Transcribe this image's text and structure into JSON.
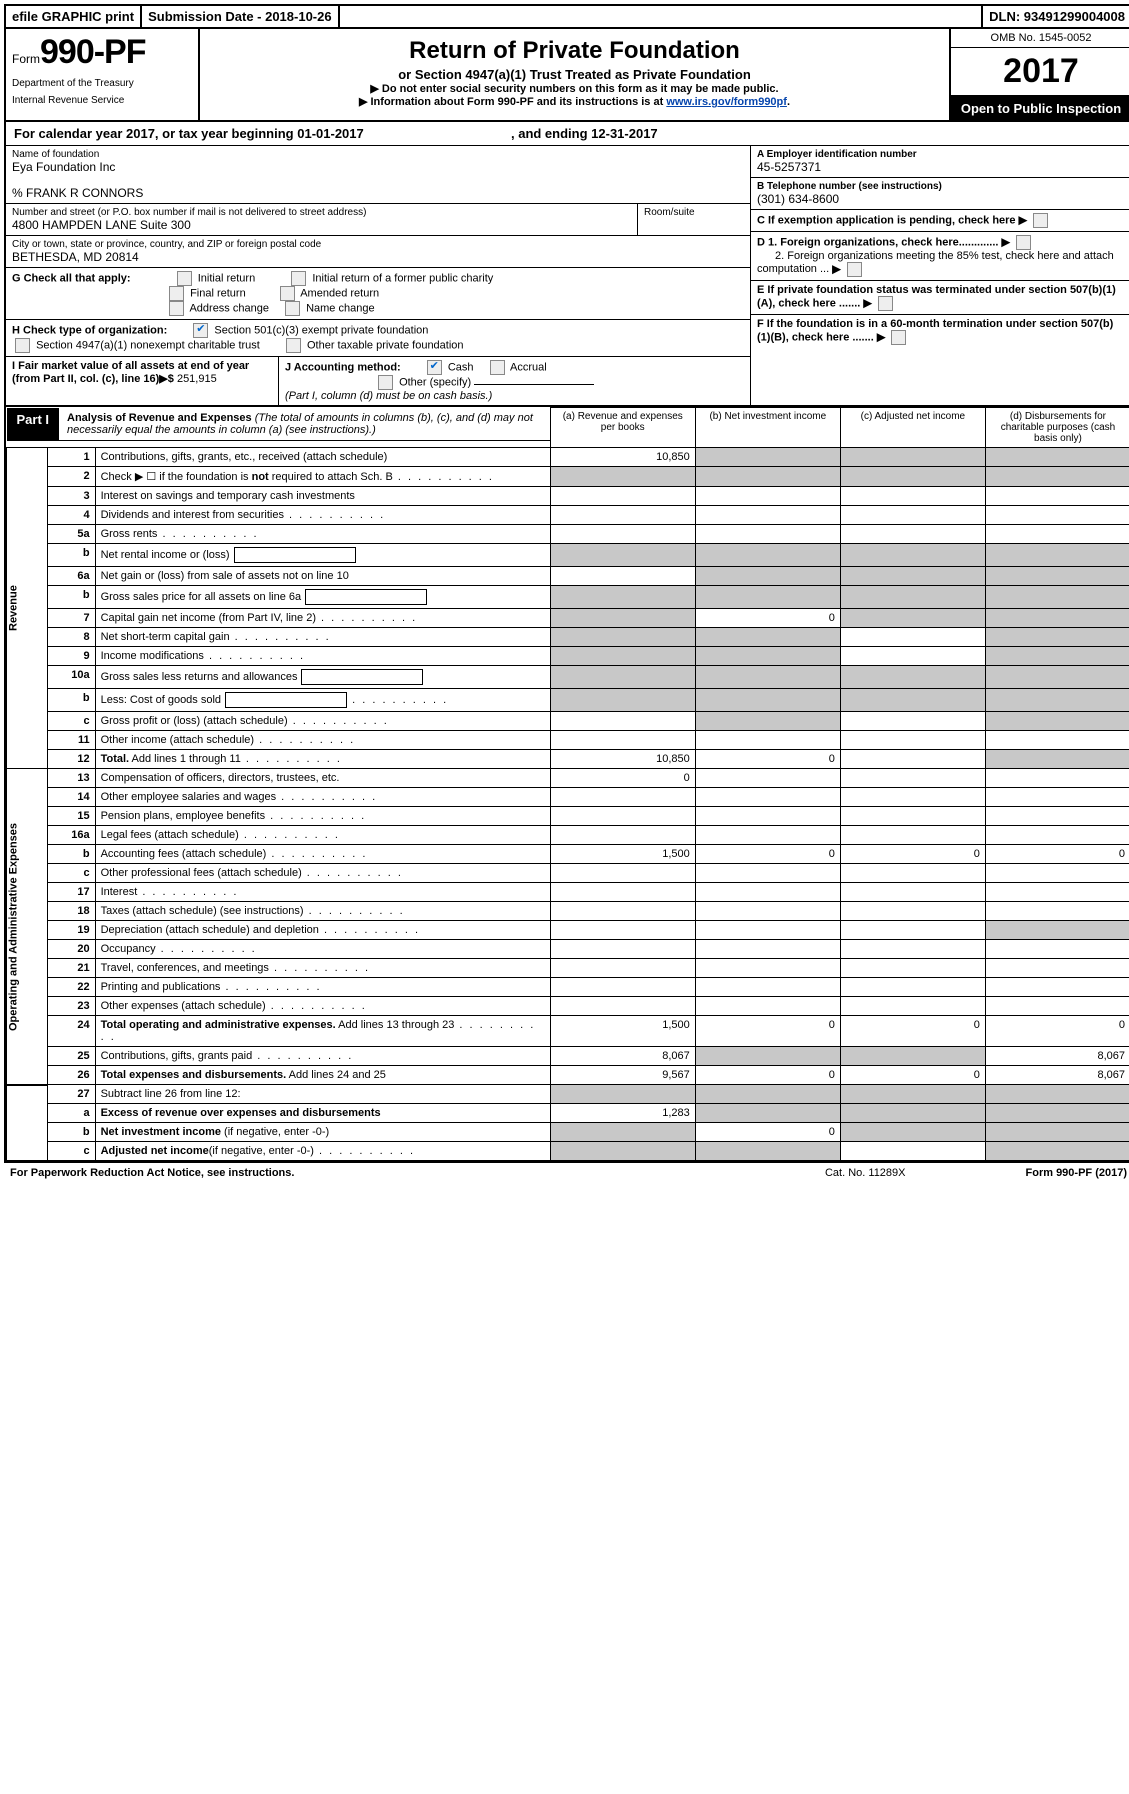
{
  "top": {
    "efile": "efile GRAPHIC print",
    "submission": "Submission Date - 2018-10-26",
    "dln": "DLN: 93491299004008"
  },
  "header": {
    "form_prefix": "Form",
    "form_number": "990-PF",
    "dept1": "Department of the Treasury",
    "dept2": "Internal Revenue Service",
    "title": "Return of Private Foundation",
    "subtitle": "or Section 4947(a)(1) Trust Treated as Private Foundation",
    "note1": "▶ Do not enter social security numbers on this form as it may be made public.",
    "note2_pre": "▶ Information about Form 990-PF and its instructions is at ",
    "note2_link": "www.irs.gov/form990pf",
    "omb": "OMB No. 1545-0052",
    "year": "2017",
    "otp": "Open to Public Inspection"
  },
  "cal": {
    "text_pre": "For calendar year 2017, or tax year beginning ",
    "begin": "01-01-2017",
    "mid": " , and ending ",
    "end": "12-31-2017"
  },
  "entity": {
    "name_lbl": "Name of foundation",
    "name": "Eya Foundation Inc",
    "care_of": "% FRANK R CONNORS",
    "addr_lbl": "Number and street (or P.O. box number if mail is not delivered to street address)",
    "addr": "4800 HAMPDEN LANE Suite 300",
    "room_lbl": "Room/suite",
    "city_lbl": "City or town, state or province, country, and ZIP or foreign postal code",
    "city": "BETHESDA, MD  20814",
    "ein_lbl": "A Employer identification number",
    "ein": "45-5257371",
    "tel_lbl": "B Telephone number (see instructions)",
    "tel": "(301) 634-8600",
    "c_lbl": "C If exemption application is pending, check here",
    "d1": "D 1. Foreign organizations, check here.............",
    "d2": "2. Foreign organizations meeting the 85% test, check here and attach computation ...",
    "e_lbl": "E  If private foundation status was terminated under section 507(b)(1)(A), check here .......",
    "f_lbl": "F  If the foundation is in a 60-month termination under section 507(b)(1)(B), check here ......."
  },
  "g": {
    "lbl": "G Check all that apply:",
    "opts": [
      "Initial return",
      "Initial return of a former public charity",
      "Final return",
      "Amended return",
      "Address change",
      "Name change"
    ]
  },
  "h": {
    "lbl": "H Check type of organization:",
    "o1": "Section 501(c)(3) exempt private foundation",
    "o2": "Section 4947(a)(1) nonexempt charitable trust",
    "o3": "Other taxable private foundation"
  },
  "i": {
    "lbl": "I Fair market value of all assets at end of year (from Part II, col. (c), line 16)▶$",
    "val": "  251,915"
  },
  "j": {
    "lbl": "J Accounting method:",
    "cash": "Cash",
    "accrual": "Accrual",
    "other": "Other (specify)",
    "note": "(Part I, column (d) must be on cash basis.)"
  },
  "part1": {
    "label": "Part I",
    "title": "Analysis of Revenue and Expenses",
    "title_note": "(The total of amounts in columns (b), (c), and (d) may not necessarily equal the amounts in column (a) (see instructions).)",
    "col_a": "(a)   Revenue and expenses per books",
    "col_b": "(b)   Net investment income",
    "col_c": "(c)  Adjusted net income",
    "col_d": "(d)  Disbursements for charitable purposes (cash basis only)"
  },
  "sections": {
    "revenue": "Revenue",
    "opex": "Operating and Administrative Expenses"
  },
  "rows": [
    {
      "n": "1",
      "d": "Contributions, gifts, grants, etc., received (attach schedule)",
      "a": "10,850",
      "shade": [
        "b",
        "c",
        "d"
      ]
    },
    {
      "n": "2",
      "d": "Check ▶ ☐ if the foundation is <b>not</b> required to attach Sch. B",
      "dots": true,
      "shade": [
        "a",
        "b",
        "c",
        "d"
      ]
    },
    {
      "n": "3",
      "d": "Interest on savings and temporary cash investments"
    },
    {
      "n": "4",
      "d": "Dividends and interest from securities",
      "dots": true
    },
    {
      "n": "5a",
      "d": "Gross rents",
      "dots": true
    },
    {
      "n": "b",
      "d": "Net rental income or (loss)",
      "box": true,
      "shade": [
        "a",
        "b",
        "c",
        "d"
      ]
    },
    {
      "n": "6a",
      "d": "Net gain or (loss) from sale of assets not on line 10",
      "shade": [
        "b",
        "c",
        "d"
      ]
    },
    {
      "n": "b",
      "d": "Gross sales price for all assets on line 6a",
      "box": true,
      "shade": [
        "a",
        "b",
        "c",
        "d"
      ]
    },
    {
      "n": "7",
      "d": "Capital gain net income (from Part IV, line 2)",
      "dots": true,
      "b": "0",
      "shade": [
        "a",
        "c",
        "d"
      ]
    },
    {
      "n": "8",
      "d": "Net short-term capital gain",
      "dots": true,
      "shade": [
        "a",
        "b",
        "d"
      ]
    },
    {
      "n": "9",
      "d": "Income modifications",
      "dots": true,
      "shade": [
        "a",
        "b",
        "d"
      ]
    },
    {
      "n": "10a",
      "d": "Gross sales less returns and allowances",
      "box": true,
      "shade": [
        "a",
        "b",
        "c",
        "d"
      ]
    },
    {
      "n": "b",
      "d": "Less: Cost of goods sold",
      "dots": true,
      "box": true,
      "shade": [
        "a",
        "b",
        "c",
        "d"
      ]
    },
    {
      "n": "c",
      "d": "Gross profit or (loss) (attach schedule)",
      "dots": true,
      "shade": [
        "b",
        "d"
      ]
    },
    {
      "n": "11",
      "d": "Other income (attach schedule)",
      "dots": true
    },
    {
      "n": "12",
      "d": "<b>Total.</b> Add lines 1 through 11",
      "dots": true,
      "a": "10,850",
      "b": "0",
      "shade": [
        "d"
      ]
    }
  ],
  "rows2": [
    {
      "n": "13",
      "d": "Compensation of officers, directors, trustees, etc.",
      "a": "0"
    },
    {
      "n": "14",
      "d": "Other employee salaries and wages",
      "dots": true
    },
    {
      "n": "15",
      "d": "Pension plans, employee benefits",
      "dots": true
    },
    {
      "n": "16a",
      "d": "Legal fees (attach schedule)",
      "dots": true
    },
    {
      "n": "b",
      "d": "Accounting fees (attach schedule)",
      "dots": true,
      "a": "1,500",
      "b": "0",
      "c": "0",
      "dd": "0"
    },
    {
      "n": "c",
      "d": "Other professional fees (attach schedule)",
      "dots": true
    },
    {
      "n": "17",
      "d": "Interest",
      "dots": true
    },
    {
      "n": "18",
      "d": "Taxes (attach schedule) (see instructions)",
      "dots": true
    },
    {
      "n": "19",
      "d": "Depreciation (attach schedule) and depletion",
      "dots": true,
      "shade": [
        "d"
      ]
    },
    {
      "n": "20",
      "d": "Occupancy",
      "dots": true
    },
    {
      "n": "21",
      "d": "Travel, conferences, and meetings",
      "dots": true
    },
    {
      "n": "22",
      "d": "Printing and publications",
      "dots": true
    },
    {
      "n": "23",
      "d": "Other expenses (attach schedule)",
      "dots": true
    },
    {
      "n": "24",
      "d": "<b>Total operating and administrative expenses.</b> Add lines 13 through 23",
      "dots": true,
      "a": "1,500",
      "b": "0",
      "c": "0",
      "dd": "0"
    },
    {
      "n": "25",
      "d": "Contributions, gifts, grants paid",
      "dots": true,
      "a": "8,067",
      "shade": [
        "b",
        "c"
      ],
      "dd": "8,067"
    },
    {
      "n": "26",
      "d": "<b>Total expenses and disbursements.</b> Add lines 24 and 25",
      "a": "9,567",
      "b": "0",
      "c": "0",
      "dd": "8,067"
    }
  ],
  "rows3": [
    {
      "n": "27",
      "d": "Subtract line 26 from line 12:",
      "shade": [
        "a",
        "b",
        "c",
        "d"
      ]
    },
    {
      "n": "a",
      "d": "<b>Excess of revenue over expenses and disbursements</b>",
      "a": "1,283",
      "shade": [
        "b",
        "c",
        "d"
      ]
    },
    {
      "n": "b",
      "d": "<b>Net investment income</b> (if negative, enter -0-)",
      "b": "0",
      "shade": [
        "a",
        "c",
        "d"
      ]
    },
    {
      "n": "c",
      "d": "<b>Adjusted net income</b>(if negative, enter -0-)",
      "dots": true,
      "shade": [
        "a",
        "b",
        "d"
      ]
    }
  ],
  "footer": {
    "left": "For Paperwork Reduction Act Notice, see instructions.",
    "mid": "Cat. No. 11289X",
    "right": "Form 990-PF (2017)"
  }
}
